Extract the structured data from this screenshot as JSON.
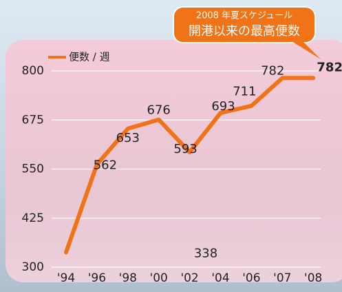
{
  "chart_data": {
    "type": "line",
    "annotation": [
      "2008 年夏スケジュール",
      "開港以来の最高便数"
    ],
    "categories": [
      "'94",
      "'96",
      "'98",
      "'00",
      "'02",
      "'04",
      "'06",
      "'07",
      "'08"
    ],
    "series": [
      {
        "name": "便数 / 週",
        "color": "#f07318",
        "values": [
          338,
          562,
          653,
          676,
          593,
          693,
          711,
          782,
          782
        ]
      }
    ],
    "ylim": [
      300,
      800
    ],
    "yticks": [
      300,
      425,
      550,
      675,
      800
    ],
    "grid": true,
    "legend": "top-left"
  }
}
